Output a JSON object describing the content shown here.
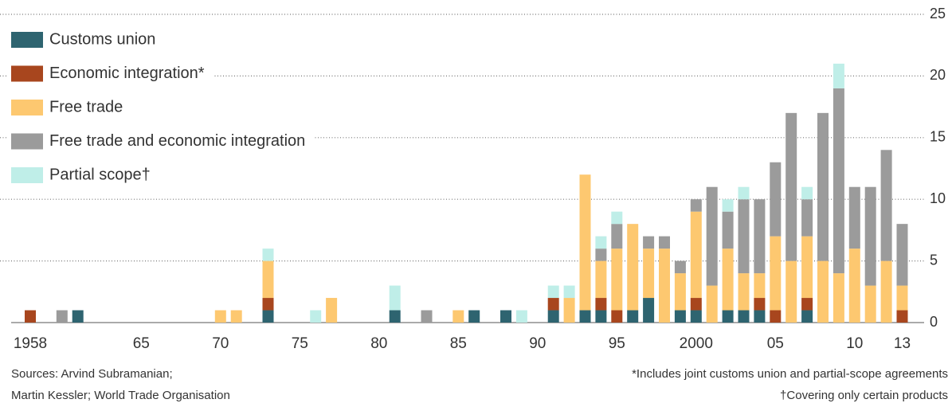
{
  "chart_data": {
    "type": "bar",
    "stacked": true,
    "categories": [
      "1958",
      null,
      null,
      null,
      null,
      null,
      null,
      "65",
      null,
      null,
      null,
      null,
      "70",
      null,
      null,
      null,
      null,
      "75",
      null,
      null,
      null,
      null,
      "80",
      null,
      null,
      null,
      null,
      "85",
      null,
      null,
      null,
      null,
      "90",
      null,
      null,
      null,
      null,
      "95",
      null,
      null,
      null,
      null,
      "2000",
      null,
      null,
      null,
      null,
      "05",
      null,
      null,
      null,
      null,
      "10",
      null,
      null,
      "13"
    ],
    "series": [
      {
        "name": "Customs union",
        "color": "#2e6470",
        "values": [
          0,
          0,
          0,
          1,
          0,
          0,
          0,
          0,
          0,
          0,
          0,
          0,
          0,
          0,
          0,
          1,
          0,
          0,
          0,
          0,
          0,
          0,
          0,
          1,
          0,
          0,
          0,
          0,
          1,
          0,
          1,
          0,
          0,
          1,
          0,
          1,
          1,
          0,
          1,
          2,
          0,
          1,
          1,
          0,
          1,
          1,
          1,
          0,
          0,
          1,
          0,
          0,
          0,
          0,
          0,
          0
        ]
      },
      {
        "name": "Economic integration*",
        "color": "#a8461e",
        "values": [
          1,
          0,
          0,
          0,
          0,
          0,
          0,
          0,
          0,
          0,
          0,
          0,
          0,
          0,
          0,
          1,
          0,
          0,
          0,
          0,
          0,
          0,
          0,
          0,
          0,
          0,
          0,
          0,
          0,
          0,
          0,
          0,
          0,
          1,
          0,
          0,
          1,
          1,
          0,
          0,
          0,
          0,
          1,
          0,
          0,
          0,
          1,
          1,
          0,
          1,
          0,
          0,
          0,
          0,
          0,
          1
        ]
      },
      {
        "name": "Free trade",
        "color": "#fdc870",
        "values": [
          0,
          0,
          0,
          0,
          0,
          0,
          0,
          0,
          0,
          0,
          0,
          0,
          1,
          1,
          0,
          3,
          0,
          0,
          0,
          2,
          0,
          0,
          0,
          0,
          0,
          0,
          0,
          1,
          0,
          0,
          0,
          0,
          0,
          0,
          2,
          11,
          3,
          5,
          7,
          4,
          6,
          3,
          7,
          3,
          5,
          3,
          2,
          6,
          5,
          5,
          5,
          4,
          6,
          3,
          5,
          2
        ]
      },
      {
        "name": "Free trade and economic integration",
        "color": "#9b9b9b",
        "values": [
          0,
          0,
          1,
          0,
          0,
          0,
          0,
          0,
          0,
          0,
          0,
          0,
          0,
          0,
          0,
          0,
          0,
          0,
          0,
          0,
          0,
          0,
          0,
          0,
          0,
          1,
          0,
          0,
          0,
          0,
          0,
          0,
          0,
          0,
          0,
          0,
          1,
          2,
          0,
          1,
          1,
          1,
          1,
          8,
          3,
          6,
          6,
          6,
          12,
          3,
          12,
          15,
          5,
          8,
          9,
          5
        ]
      },
      {
        "name": "Partial scope†",
        "color": "#bfeee8",
        "values": [
          0,
          0,
          0,
          0,
          0,
          0,
          0,
          0,
          0,
          0,
          0,
          0,
          0,
          0,
          0,
          1,
          0,
          0,
          1,
          0,
          0,
          0,
          0,
          2,
          0,
          0,
          0,
          0,
          0,
          0,
          0,
          1,
          0,
          1,
          1,
          0,
          1,
          1,
          0,
          0,
          0,
          0,
          0,
          0,
          1,
          1,
          0,
          0,
          0,
          1,
          0,
          2,
          0,
          0,
          0,
          0
        ]
      }
    ],
    "ylim": [
      0,
      25
    ],
    "yticks": [
      0,
      5,
      10,
      15,
      20,
      25
    ],
    "grid": true,
    "legend": "top-left",
    "sources": [
      "Sources: Arvind Subramanian;",
      "Martin Kessler; World Trade Organisation"
    ],
    "notes": [
      "*Includes joint customs union and partial-scope agreements",
      "†Covering only certain products"
    ]
  }
}
